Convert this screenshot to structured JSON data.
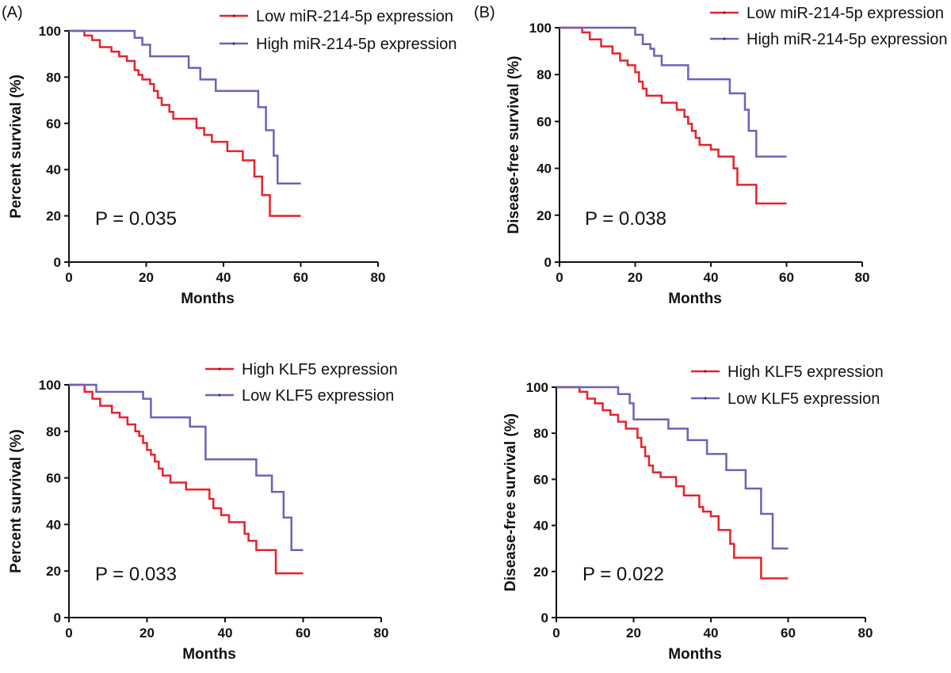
{
  "panel_labels": {
    "a": "(A)",
    "b": "(B)"
  },
  "colors": {
    "red": "#e8212b",
    "purple": "#7060b8",
    "axis": "#111111"
  },
  "chart_data": [
    {
      "type": "line",
      "panel": "A-top",
      "xlabel": "Months",
      "ylabel": "Percent survival (%)",
      "xlim": [
        0,
        80
      ],
      "ylim": [
        0,
        100
      ],
      "xticks": [
        0,
        20,
        40,
        60,
        80
      ],
      "yticks": [
        0,
        20,
        40,
        60,
        80,
        100
      ],
      "grid": false,
      "legend_position": "top-right",
      "annotation": "P = 0.035",
      "series": [
        {
          "name": "Low miR-214-5p expression",
          "color": "#e8212b",
          "x": [
            0,
            4,
            6,
            8,
            11,
            13,
            15,
            17,
            18,
            19,
            21,
            22,
            23,
            24,
            26,
            27,
            30,
            33,
            35,
            37,
            41,
            45,
            46,
            48,
            50,
            52,
            60
          ],
          "y": [
            100,
            98,
            96,
            93,
            91,
            89,
            87,
            83,
            81,
            79,
            77,
            74,
            71,
            68,
            65,
            62,
            62,
            58,
            55,
            52,
            48,
            44,
            44,
            37,
            29,
            20,
            20
          ]
        },
        {
          "name": "High miR-214-5p expression",
          "color": "#7060b8",
          "x": [
            0,
            15,
            17,
            19,
            21,
            28,
            31,
            34,
            38,
            44,
            49,
            51,
            53,
            54,
            60
          ],
          "y": [
            100,
            100,
            97,
            94,
            89,
            89,
            84,
            79,
            74,
            74,
            67,
            57,
            46,
            34,
            34
          ]
        }
      ]
    },
    {
      "type": "line",
      "panel": "B-top",
      "xlabel": "Months",
      "ylabel": "Disease-free survival (%)",
      "xlim": [
        0,
        80
      ],
      "ylim": [
        0,
        100
      ],
      "xticks": [
        0,
        20,
        40,
        60,
        80
      ],
      "yticks": [
        0,
        20,
        40,
        60,
        80,
        100
      ],
      "grid": false,
      "legend_position": "top-right",
      "annotation": "P = 0.038",
      "series": [
        {
          "name": "Low miR-214-5p expression",
          "color": "#e8212b",
          "x": [
            0,
            6,
            8,
            11,
            14,
            16,
            18,
            20,
            21,
            22,
            23,
            24,
            27,
            31,
            33,
            34,
            35,
            36,
            37,
            38,
            40,
            42,
            46,
            47,
            49,
            52,
            60
          ],
          "y": [
            100,
            98,
            95,
            92,
            89,
            86,
            84,
            81,
            77,
            74,
            71,
            71,
            68,
            65,
            62,
            59,
            56,
            53,
            50,
            50,
            48,
            45,
            40,
            33,
            33,
            25,
            25
          ]
        },
        {
          "name": "High miR-214-5p expression",
          "color": "#7060b8",
          "x": [
            0,
            19,
            20,
            22,
            24,
            25,
            27,
            30,
            34,
            44,
            45,
            49,
            50,
            52,
            60
          ],
          "y": [
            100,
            100,
            97,
            93,
            91,
            88,
            84,
            84,
            78,
            78,
            72,
            65,
            56,
            45,
            45
          ]
        }
      ]
    },
    {
      "type": "line",
      "panel": "A-bottom",
      "xlabel": "Months",
      "ylabel": "Percent survival (%)",
      "xlim": [
        0,
        80
      ],
      "ylim": [
        0,
        100
      ],
      "xticks": [
        0,
        20,
        40,
        60,
        80
      ],
      "yticks": [
        0,
        20,
        40,
        60,
        80,
        100
      ],
      "grid": false,
      "legend_position": "top-right",
      "annotation": "P = 0.033",
      "series": [
        {
          "name": "High KLF5 expression",
          "color": "#e8212b",
          "x": [
            0,
            4,
            6,
            8,
            11,
            13,
            15,
            17,
            18,
            19,
            20,
            21,
            22,
            23,
            24,
            26,
            30,
            33,
            36,
            37,
            39,
            41,
            45,
            46,
            48,
            52,
            53,
            60
          ],
          "y": [
            100,
            97,
            94,
            91,
            88,
            86,
            83,
            80,
            78,
            75,
            72,
            70,
            67,
            64,
            61,
            58,
            55,
            55,
            51,
            47,
            44,
            41,
            36,
            33,
            29,
            29,
            19,
            19
          ]
        },
        {
          "name": "Low KLF5 expression",
          "color": "#7060b8",
          "x": [
            0,
            7,
            17,
            19,
            21,
            26,
            31,
            35,
            45,
            48,
            52,
            55,
            57,
            60
          ],
          "y": [
            100,
            97,
            97,
            94,
            86,
            86,
            82,
            68,
            68,
            61,
            54,
            43,
            29,
            29
          ]
        }
      ]
    },
    {
      "type": "line",
      "panel": "B-bottom",
      "xlabel": "Months",
      "ylabel": "Disease-free survival (%)",
      "xlim": [
        0,
        80
      ],
      "ylim": [
        0,
        100
      ],
      "xticks": [
        0,
        20,
        40,
        60,
        80
      ],
      "yticks": [
        0,
        20,
        40,
        60,
        80,
        100
      ],
      "grid": false,
      "legend_position": "top-right",
      "annotation": "P = 0.022",
      "series": [
        {
          "name": "High KLF5 expression",
          "color": "#e8212b",
          "x": [
            0,
            6,
            8,
            10,
            12,
            14,
            16,
            18,
            20,
            21,
            22,
            23,
            24,
            25,
            27,
            31,
            33,
            35,
            37,
            38,
            40,
            42,
            44,
            45,
            46,
            49,
            53,
            60
          ],
          "y": [
            100,
            98,
            95,
            93,
            90,
            88,
            85,
            82,
            82,
            78,
            74,
            70,
            66,
            63,
            61,
            57,
            53,
            53,
            48,
            46,
            44,
            38,
            38,
            32,
            26,
            26,
            17,
            17
          ]
        },
        {
          "name": "Low KLF5 expression",
          "color": "#7060b8",
          "x": [
            0,
            14,
            16,
            19,
            20,
            29,
            34,
            39,
            44,
            49,
            53,
            56,
            60
          ],
          "y": [
            100,
            100,
            97,
            93,
            86,
            82,
            77,
            71,
            64,
            56,
            45,
            30,
            30
          ]
        }
      ]
    }
  ]
}
